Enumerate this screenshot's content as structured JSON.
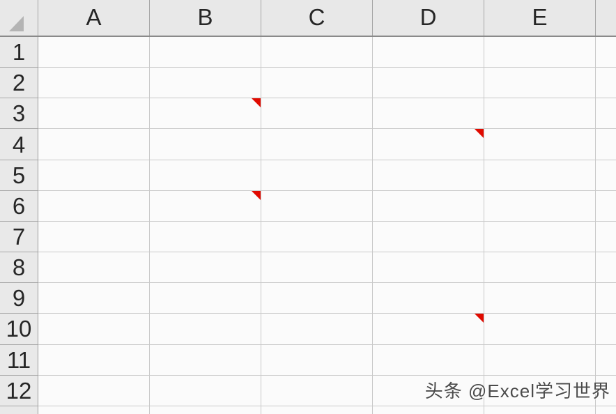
{
  "sheet": {
    "column_headers": [
      "A",
      "B",
      "C",
      "D",
      "E"
    ],
    "row_headers": [
      "1",
      "2",
      "3",
      "4",
      "5",
      "6",
      "7",
      "8",
      "9",
      "10",
      "11",
      "12"
    ],
    "comment_cells": [
      "B3",
      "D4",
      "B6",
      "D10"
    ],
    "watermark": {
      "text": "头条 @Excel学习世界"
    },
    "colors": {
      "comment_indicator": "#e00a00",
      "header_background": "#e8e8e8",
      "header_bottom_border": "#8a8a8a",
      "gridline": "#c9c9c9",
      "cell_background": "#fbfbfb",
      "select_all_triangle": "#b4b4b4",
      "watermark_text": "#4b4b4b"
    },
    "icons": {
      "select_all": "select-all-triangle-icon",
      "comment": "comment-indicator-icon"
    }
  }
}
